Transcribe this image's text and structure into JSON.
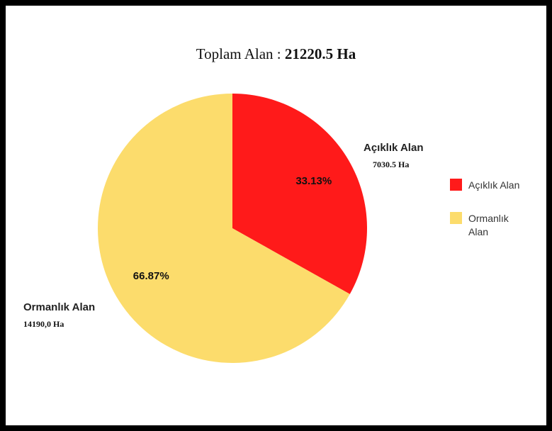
{
  "title": {
    "prefix": "Toplam Alan : ",
    "value": "21220.5 Ha"
  },
  "legend": {
    "items": [
      {
        "label": "Açıklık Alan",
        "color": "#ff1a1a"
      },
      {
        "label": "Ormanlık Alan",
        "color": "#fcdc6c"
      }
    ]
  },
  "chart_data": {
    "type": "pie",
    "title": "Toplam Alan : 21220.5 Ha",
    "start_angle_deg": 0,
    "direction": "clockwise",
    "legend_position": "right",
    "slices": [
      {
        "name": "Açıklık Alan",
        "value": 7030.5,
        "value_label": "7030.5 Ha",
        "percent_label": "33.13%",
        "color": "#ff1a1a"
      },
      {
        "name": "Ormanlık Alan",
        "value": 14190.0,
        "value_label": "14190,0 Ha",
        "percent_label": "66.87%",
        "color": "#fcdc6c"
      }
    ]
  }
}
